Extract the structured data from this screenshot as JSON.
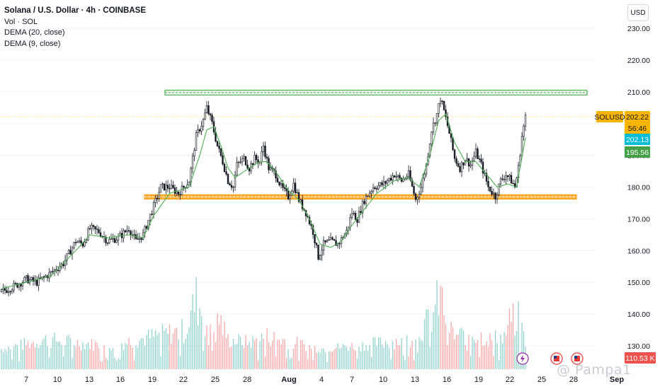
{
  "legend": {
    "title": "Solana / U.S. Dollar · 4h · COINBASE",
    "vol": "Vol · SOL",
    "dema20": "DEMA (20, close)",
    "dema9": "DEMA (9, close)"
  },
  "currency_button": "USD",
  "watermark": "@ Pampa1",
  "colors": {
    "up": "#26a69a",
    "down": "#ef5350",
    "dema": "#4caf50",
    "support": "#ff9800",
    "resistance": "#4caf50",
    "price_line": "#ffd54f",
    "tag_symbol": "#f7b500",
    "tag_dema9": "#00bcd4",
    "tag_dema20": "#43a047",
    "tag_volume": "#ef5350"
  },
  "chart_data": {
    "type": "candlestick",
    "symbol": "SOLUSD",
    "timeframe": "4h",
    "y_ticks": [
      130,
      140,
      150,
      160,
      170,
      180,
      190,
      200,
      210,
      220,
      230
    ],
    "y_tick_labels": [
      "130.00",
      "140.00",
      "150.00",
      "160.00",
      "170.00",
      "180.00",
      "190.00",
      "200.00",
      "210.00",
      "220.00",
      "230.00"
    ],
    "x_tick_labels": [
      "7",
      "10",
      "13",
      "16",
      "19",
      "22",
      "25",
      "28",
      "Aug",
      "4",
      "7",
      "10",
      "13",
      "16",
      "19",
      "22",
      "25",
      "28",
      "Sep"
    ],
    "price_tags": [
      {
        "label": "SOLUSD",
        "value": "202.22",
        "role": "symbol"
      },
      {
        "label": "",
        "value": "56:46",
        "role": "countdown"
      },
      {
        "label": "",
        "value": "202.13",
        "role": "dema9"
      },
      {
        "label": "",
        "value": "195.56",
        "role": "dema20"
      },
      {
        "label": "",
        "value": "110.53 K",
        "role": "volume"
      }
    ],
    "last_price": 202.22,
    "dema_last": 195.56,
    "resistance_zone": [
      209,
      210.5
    ],
    "support_zone": [
      176.2,
      177.6
    ],
    "anchors": [
      [
        0,
        147
      ],
      [
        8,
        149
      ],
      [
        14,
        151
      ],
      [
        20,
        150
      ],
      [
        28,
        153
      ],
      [
        35,
        156
      ],
      [
        42,
        163
      ],
      [
        46,
        162
      ],
      [
        50,
        167
      ],
      [
        55,
        166
      ],
      [
        60,
        163
      ],
      [
        66,
        164
      ],
      [
        72,
        167
      ],
      [
        76,
        163
      ],
      [
        80,
        165
      ],
      [
        86,
        174
      ],
      [
        90,
        180
      ],
      [
        95,
        180
      ],
      [
        100,
        178
      ],
      [
        106,
        182
      ],
      [
        110,
        196
      ],
      [
        114,
        201
      ],
      [
        116,
        205
      ],
      [
        119,
        200
      ],
      [
        122,
        193
      ],
      [
        125,
        188
      ],
      [
        128,
        182
      ],
      [
        131,
        180
      ],
      [
        133,
        187
      ],
      [
        137,
        189
      ],
      [
        140,
        186
      ],
      [
        143,
        189
      ],
      [
        146,
        188
      ],
      [
        148,
        193
      ],
      [
        151,
        186
      ],
      [
        155,
        184
      ],
      [
        158,
        180
      ],
      [
        162,
        177
      ],
      [
        165,
        181
      ],
      [
        168,
        176
      ],
      [
        172,
        172
      ],
      [
        176,
        166
      ],
      [
        179,
        158
      ],
      [
        182,
        162
      ],
      [
        186,
        163
      ],
      [
        190,
        162
      ],
      [
        195,
        166
      ],
      [
        198,
        172
      ],
      [
        201,
        170
      ],
      [
        205,
        176
      ],
      [
        210,
        180
      ],
      [
        216,
        181
      ],
      [
        222,
        184
      ],
      [
        226,
        182
      ],
      [
        230,
        184
      ],
      [
        234,
        176
      ],
      [
        237,
        180
      ],
      [
        240,
        187
      ],
      [
        243,
        198
      ],
      [
        246,
        203
      ],
      [
        248,
        208
      ],
      [
        250,
        204
      ],
      [
        253,
        197
      ],
      [
        256,
        189
      ],
      [
        259,
        186
      ],
      [
        262,
        189
      ],
      [
        265,
        187
      ],
      [
        268,
        191
      ],
      [
        271,
        187
      ],
      [
        275,
        180
      ],
      [
        279,
        177
      ],
      [
        282,
        182
      ],
      [
        285,
        184
      ],
      [
        288,
        182
      ],
      [
        290,
        180
      ],
      [
        292,
        186
      ],
      [
        294,
        196
      ],
      [
        296,
        202
      ]
    ],
    "dema_anchors": [
      [
        0,
        148
      ],
      [
        14,
        150
      ],
      [
        28,
        152
      ],
      [
        42,
        160
      ],
      [
        50,
        165
      ],
      [
        60,
        164
      ],
      [
        72,
        165
      ],
      [
        80,
        164
      ],
      [
        86,
        171
      ],
      [
        95,
        178
      ],
      [
        106,
        180
      ],
      [
        112,
        190
      ],
      [
        116,
        198
      ],
      [
        120,
        199
      ],
      [
        124,
        193
      ],
      [
        128,
        186
      ],
      [
        132,
        183
      ],
      [
        140,
        186
      ],
      [
        146,
        188
      ],
      [
        150,
        188
      ],
      [
        156,
        184
      ],
      [
        162,
        179
      ],
      [
        168,
        176
      ],
      [
        174,
        170
      ],
      [
        180,
        162
      ],
      [
        186,
        161
      ],
      [
        192,
        163
      ],
      [
        198,
        168
      ],
      [
        205,
        173
      ],
      [
        212,
        178
      ],
      [
        222,
        182
      ],
      [
        230,
        183
      ],
      [
        236,
        180
      ],
      [
        242,
        190
      ],
      [
        247,
        201
      ],
      [
        251,
        203
      ],
      [
        256,
        194
      ],
      [
        262,
        188
      ],
      [
        268,
        188
      ],
      [
        274,
        184
      ],
      [
        280,
        180
      ],
      [
        286,
        181
      ],
      [
        291,
        180
      ],
      [
        296,
        195.56
      ]
    ],
    "volume_peaks": [
      [
        0,
        0.15
      ],
      [
        26,
        0.3
      ],
      [
        60,
        0.2
      ],
      [
        104,
        0.45
      ],
      [
        110,
        0.95
      ],
      [
        116,
        0.55
      ],
      [
        122,
        0.7
      ],
      [
        128,
        0.3
      ],
      [
        140,
        0.25
      ],
      [
        150,
        0.35
      ],
      [
        180,
        0.15
      ],
      [
        200,
        0.2
      ],
      [
        230,
        0.3
      ],
      [
        242,
        0.6
      ],
      [
        248,
        1.0
      ],
      [
        252,
        0.55
      ],
      [
        256,
        0.35
      ],
      [
        266,
        0.4
      ],
      [
        276,
        0.3
      ],
      [
        284,
        0.35
      ],
      [
        290,
        0.8
      ],
      [
        294,
        0.45
      ],
      [
        296,
        0.3
      ]
    ],
    "y_range": [
      124,
      238
    ]
  }
}
